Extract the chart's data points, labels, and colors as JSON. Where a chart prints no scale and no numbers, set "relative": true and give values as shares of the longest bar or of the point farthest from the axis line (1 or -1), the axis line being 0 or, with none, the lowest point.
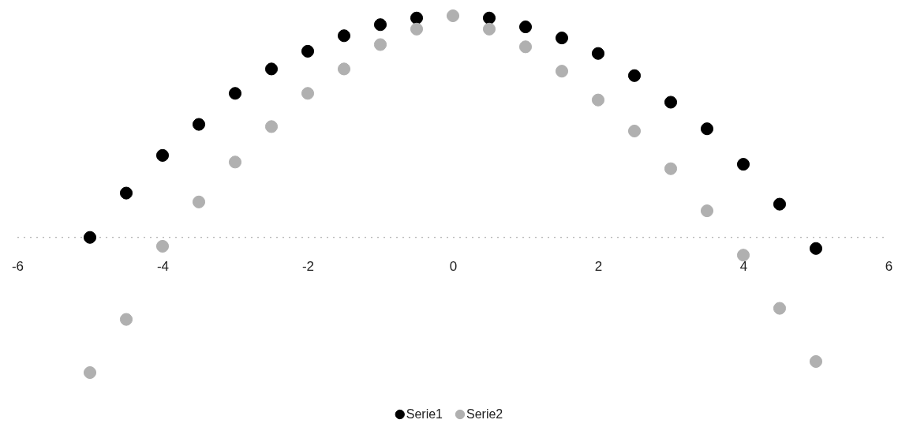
{
  "chart_data": {
    "type": "scatter",
    "relative": true,
    "marker": "circle",
    "legend": "bottom",
    "x": [
      -5,
      -4.5,
      -4,
      -3.5,
      -3,
      -2.5,
      -2,
      -1.5,
      -1,
      -0.5,
      0,
      0.5,
      1,
      1.5,
      2,
      2.5,
      3,
      3.5,
      4,
      4.5,
      5
    ],
    "ref_lines": [
      {
        "axis": "y",
        "value": 0,
        "color": "#999999",
        "line_style": "dotted"
      }
    ],
    "xlim": [
      -6,
      6
    ],
    "xticks": [
      -6,
      -4,
      -2,
      0,
      2,
      4,
      6
    ],
    "series": [
      {
        "name": "Serie1",
        "color": "#000000",
        "values": [
          0,
          0.2,
          0.37,
          0.51,
          0.65,
          0.76,
          0.84,
          0.91,
          0.96,
          0.99,
          null,
          0.99,
          0.95,
          0.9,
          0.83,
          0.73,
          0.61,
          0.49,
          0.33,
          0.15,
          -0.05
        ]
      },
      {
        "name": "Serie2",
        "color": "#b0b0b0",
        "values": [
          -0.61,
          -0.37,
          -0.04,
          0.16,
          0.34,
          0.5,
          0.65,
          0.76,
          0.87,
          0.94,
          1,
          0.94,
          0.86,
          0.75,
          0.62,
          0.48,
          0.31,
          0.12,
          -0.08,
          -0.32,
          -0.56
        ]
      }
    ]
  }
}
